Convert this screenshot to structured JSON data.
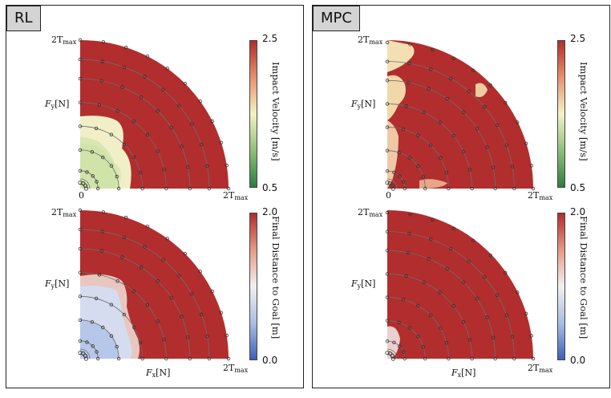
{
  "panels": [
    {
      "tag": "RL"
    },
    {
      "tag": "MPC"
    }
  ],
  "axis": {
    "y_label_var": "F",
    "y_label_sub": "y",
    "y_label_unit": "[N]",
    "x_label_var": "F",
    "x_label_sub": "x",
    "x_label_unit": "[N]",
    "max_label_prefix": "2T",
    "max_label_sub": "max",
    "zero_label": "0"
  },
  "colorbars": {
    "impact": {
      "label": "Impact Velocity [m/s]",
      "max": "2.5",
      "min": "0.5",
      "colors": [
        "#2e7d3f",
        "#8fc07c",
        "#f4f2c6",
        "#e6916f",
        "#b12c2c"
      ]
    },
    "distance": {
      "label": "Final Distance to Goal [m]",
      "max": "2.0",
      "min": "0.0",
      "colors": [
        "#3f5fb8",
        "#a9bee3",
        "#f2f0f0",
        "#e59a86",
        "#b12c2c"
      ]
    }
  },
  "chart_data": [
    {
      "panel": "RL",
      "type": "heatmap",
      "metric": "Impact Velocity",
      "colorbar_range": [
        0.5,
        2.5
      ],
      "x_range": [
        "0",
        "2T_max"
      ],
      "y_range": [
        "0",
        "2T_max"
      ]
    },
    {
      "panel": "RL",
      "type": "heatmap",
      "metric": "Final Distance to Goal",
      "colorbar_range": [
        0.0,
        2.0
      ],
      "x_range": [
        "0",
        "2T_max"
      ],
      "y_range": [
        "0",
        "2T_max"
      ]
    },
    {
      "panel": "MPC",
      "type": "heatmap",
      "metric": "Impact Velocity",
      "colorbar_range": [
        0.5,
        2.5
      ],
      "x_range": [
        "0",
        "2T_max"
      ],
      "y_range": [
        "0",
        "2T_max"
      ]
    },
    {
      "panel": "MPC",
      "type": "heatmap",
      "metric": "Final Distance to Goal",
      "colorbar_range": [
        0.0,
        2.0
      ],
      "x_range": [
        "0",
        "2T_max"
      ],
      "y_range": [
        "0",
        "2T_max"
      ]
    }
  ]
}
